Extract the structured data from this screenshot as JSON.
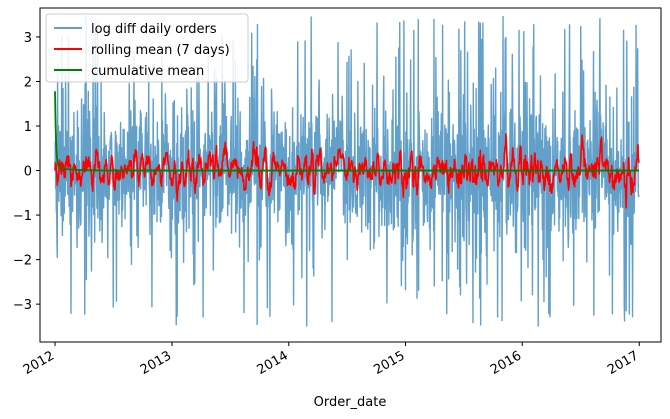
{
  "chart_data": {
    "type": "line",
    "title": "",
    "xlabel": "Order_date",
    "ylabel": "",
    "x_ticks": [
      "2012",
      "2013",
      "2014",
      "2015",
      "2016",
      "2017"
    ],
    "y_ticks": [
      "−3",
      "−2",
      "−1",
      "0",
      "1",
      "2",
      "3"
    ],
    "x_range": [
      "2011-11-15",
      "2017-03-10"
    ],
    "ylim": [
      -3.85,
      3.65
    ],
    "grid": false,
    "legend_position": "top-left",
    "series": [
      {
        "name": "log diff daily orders",
        "color": "#1f77b4",
        "alpha": 0.7,
        "sampling": "daily, 2012-01-01 to 2016-12-31",
        "approx_range": [
          -3.5,
          3.5
        ]
      },
      {
        "name": "rolling mean (7 days)",
        "color": "#ff0000",
        "approx_range": [
          -0.5,
          0.55
        ]
      },
      {
        "name": "cumulative mean",
        "color": "#008000",
        "start_value": 1.7,
        "end_value": 0.0
      }
    ]
  }
}
